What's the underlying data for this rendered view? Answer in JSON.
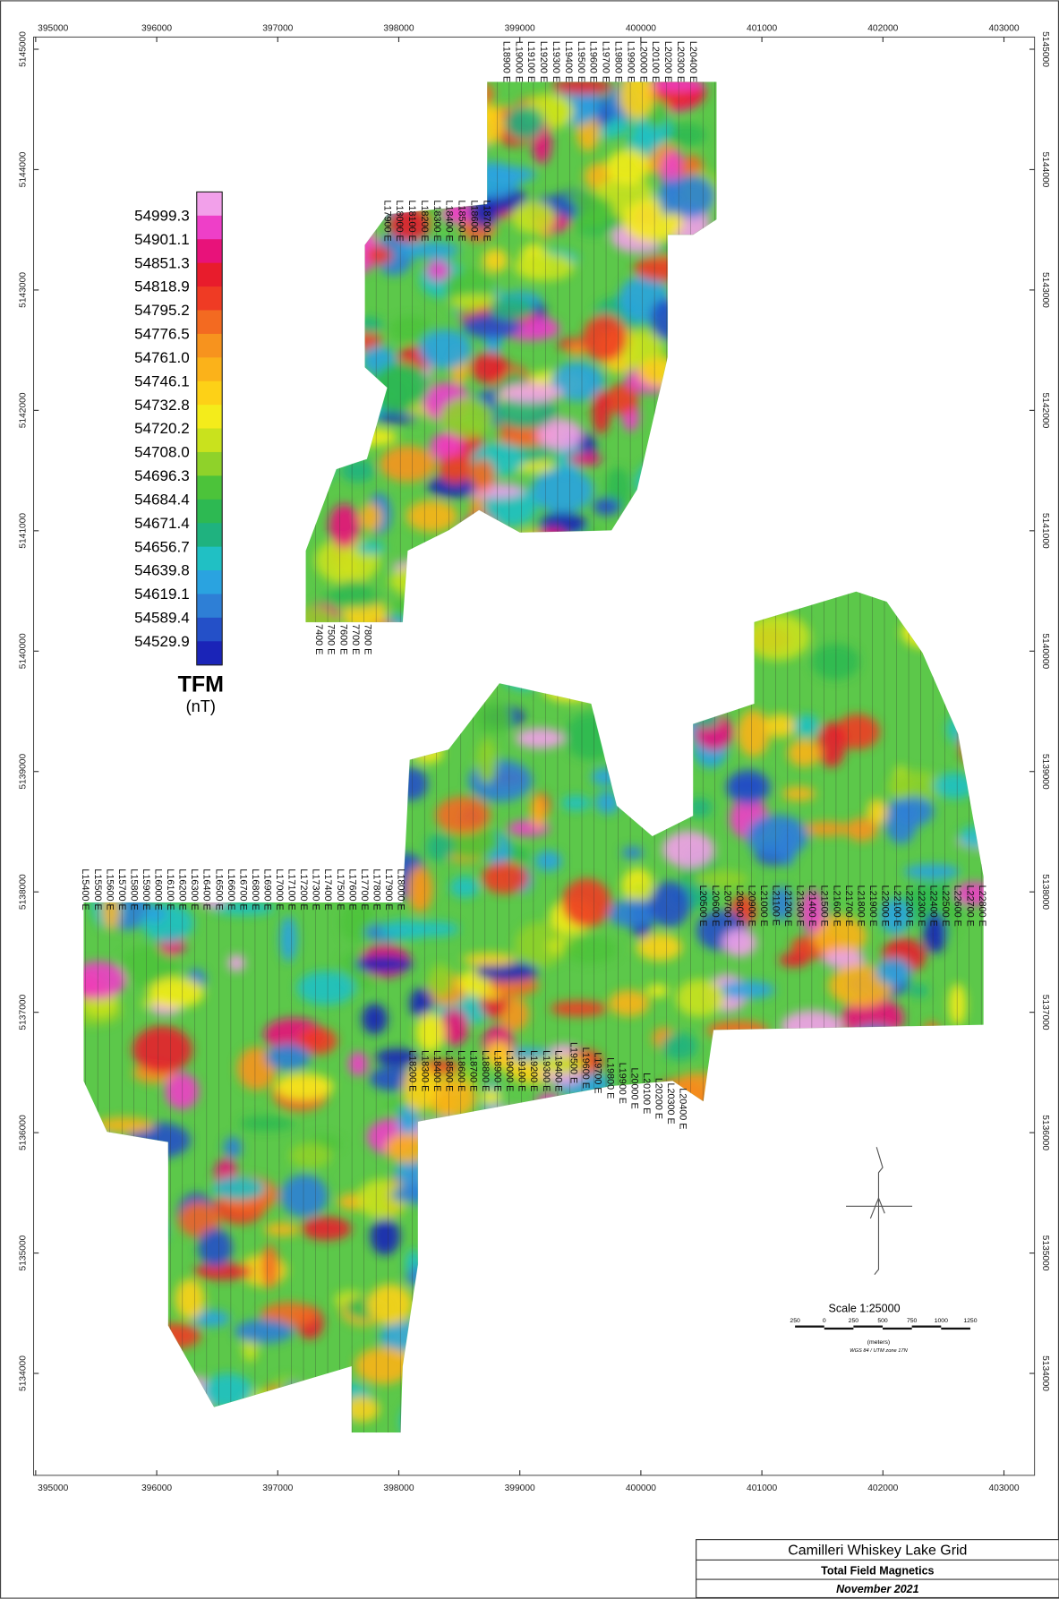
{
  "map": {
    "x_ticks": [
      395000,
      396000,
      397000,
      398000,
      399000,
      400000,
      401000,
      402000,
      403000
    ],
    "y_ticks": [
      5145000,
      5144000,
      5143000,
      5142000,
      5141000,
      5140000,
      5139000,
      5138000,
      5137000,
      5136000,
      5135000,
      5134000
    ]
  },
  "legend": {
    "values": [
      "54999.3",
      "54901.1",
      "54851.3",
      "54818.9",
      "54795.2",
      "54776.5",
      "54761.0",
      "54746.1",
      "54732.8",
      "54720.2",
      "54708.0",
      "54696.3",
      "54684.4",
      "54671.4",
      "54656.7",
      "54639.8",
      "54619.1",
      "54589.4",
      "54529.9"
    ],
    "colors": [
      "#f2a0ea",
      "#ee3fc8",
      "#e8127a",
      "#e81c2c",
      "#ef3b24",
      "#f36a21",
      "#f7931e",
      "#fbb21a",
      "#fdd117",
      "#f4ec1b",
      "#c9e21d",
      "#8fd22a",
      "#4cc33a",
      "#2db952",
      "#1fb27f",
      "#20c0c4",
      "#2aa3e0",
      "#2e7fd6",
      "#2450c8",
      "#1a24b8"
    ],
    "title": "TFM",
    "unit": "(nT)"
  },
  "line_labels": {
    "north_top": [
      "L18900 E",
      "L19000 E",
      "L19100 E",
      "L19200 E",
      "L19300 E",
      "L19400 E",
      "L19500 E",
      "L19600 E",
      "L19700 E",
      "L19800 E",
      "L19900 E",
      "L20000 E",
      "L20100 E",
      "L20200 E",
      "L20300 E",
      "L20400 E"
    ],
    "north_mid": [
      "L17900 E",
      "L18000 E",
      "L18100 E",
      "L18200 E",
      "L18300 E",
      "L18400 E",
      "L18500 E",
      "L18600 E",
      "L18700 E"
    ],
    "north_bottom": [
      "7400 E",
      "7500 E",
      "7600 E",
      "7700 E",
      "7800 E"
    ],
    "south_top": [
      "L15400 E",
      "L15500 E",
      "L15600 E",
      "L15700 E",
      "L15800 E",
      "L15900 E",
      "L16000 E",
      "L16100 E",
      "L16200 E",
      "L16300 E",
      "L16400 E",
      "L16500 E",
      "L16600 E",
      "L16700 E",
      "L16800 E",
      "L16900 E",
      "L17000 E",
      "L17100 E",
      "L17200 E",
      "L17300 E",
      "L17400 E",
      "L17500 E",
      "L17600 E",
      "L17700 E",
      "L17800 E",
      "L17900 E",
      "L18000 E"
    ],
    "south_mid": [
      "L18200 E",
      "L18300 E",
      "L18400 E",
      "L18500 E",
      "L18600 E",
      "L18700 E",
      "L18800 E",
      "L18900 E",
      "L19000 E",
      "L19100 E",
      "L19200 E",
      "L19300 E",
      "L19400 E"
    ],
    "south_step": [
      "L19500 E",
      "L19600 E",
      "L19700 E",
      "L19800 E",
      "L19900 E",
      "L20000 E",
      "L20100 E",
      "L20200 E",
      "L20300 E",
      "L20400 E"
    ],
    "south_right": [
      "L20500 E",
      "L20600 E",
      "L20700 E",
      "L20800 E",
      "L20900 E",
      "L21000 E",
      "L21100 E",
      "L21200 E",
      "L21300 E",
      "L21400 E",
      "L21500 E",
      "L21600 E",
      "L21700 E",
      "L21800 E",
      "L21900 E",
      "L22000 E",
      "L22100 E",
      "L22200 E",
      "L22300 E",
      "L22400 E",
      "L22500 E",
      "L22600 E",
      "L22700 E",
      "L22800 E"
    ]
  },
  "scale": {
    "title": "Scale 1:25000",
    "ticks": [
      "250",
      "0",
      "250",
      "500",
      "750",
      "1000",
      "1250"
    ],
    "unit": "(meters)",
    "projection": "WGS 84 / UTM zone 17N"
  },
  "title_block": {
    "title": "Camilleri Whiskey Lake Grid",
    "subtitle": "Total Field Magnetics",
    "date": "November 2021"
  }
}
